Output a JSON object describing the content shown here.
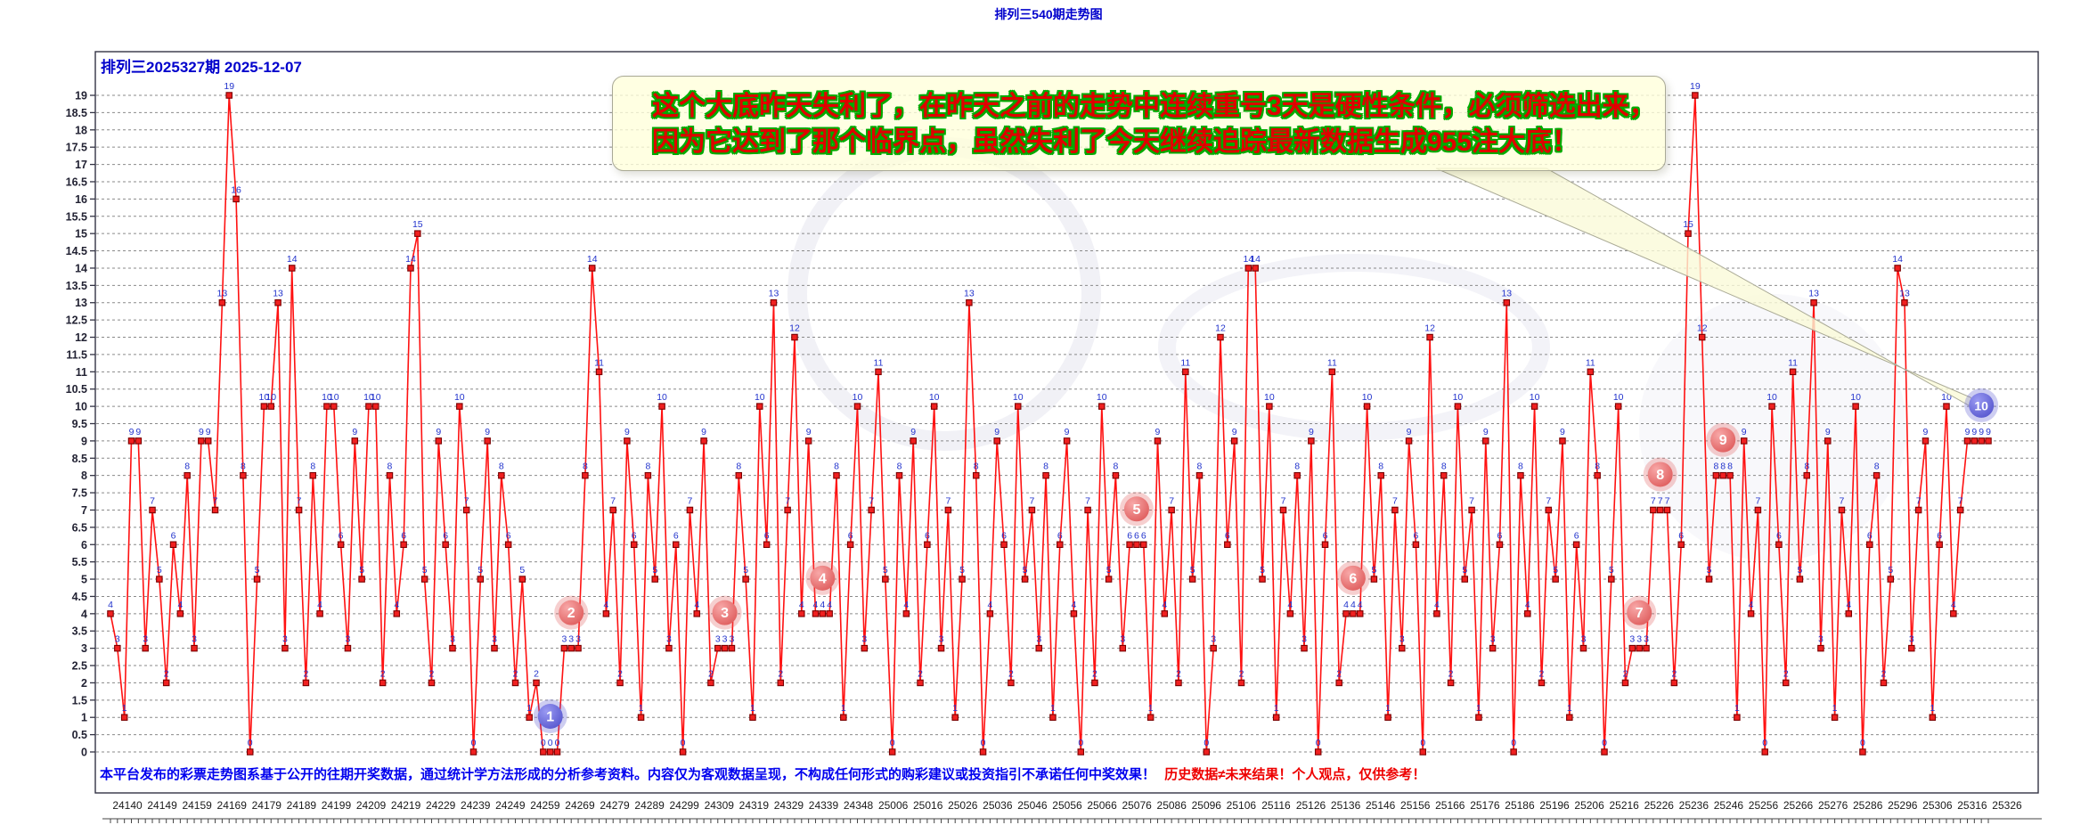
{
  "page": {
    "title": "排列三540期走势图"
  },
  "chart": {
    "header": "排列三2025327期 2025-12-07",
    "bubble": {
      "line1": "这个大底昨天失利了，在昨天之前的走势中连续重号3天是硬性条件，必须筛选出来，",
      "line2": "因为它达到了那个临界点，虽然失利了今天继续追踪最新数据生成955注大底！"
    },
    "disclaimer": {
      "blue": "本平台发布的彩票走势图系基于公开的往期开奖数据，通过统计学方法形成的分析参考资料。内容仅为客观数据呈现，不构成任何形式的购彩建议或投资指引不承诺任何中奖效果！",
      "red": "历史数据≠未来结果！个人观点，仅供参考！"
    }
  },
  "chart_data": {
    "type": "line",
    "title": "排列三540期走势图",
    "xlabel": "期号",
    "ylabel": "",
    "ylim": [
      0,
      19
    ],
    "y_tick_step": 0.5,
    "grid": "dashed",
    "x_tick_labels": [
      "24140",
      "24149",
      "24159",
      "24169",
      "24179",
      "24189",
      "24199",
      "24209",
      "24219",
      "24229",
      "24239",
      "24249",
      "24259",
      "24269",
      "24279",
      "24289",
      "24299",
      "24309",
      "24319",
      "24329",
      "24339",
      "24348",
      "25006",
      "25016",
      "25026",
      "25036",
      "25046",
      "25056",
      "25066",
      "25076",
      "25086",
      "25096",
      "25106",
      "25116",
      "25126",
      "25136",
      "25146",
      "25156",
      "25166",
      "25176",
      "25186",
      "25196",
      "25206",
      "25216",
      "25226",
      "25236",
      "25246",
      "25256",
      "25266",
      "25276",
      "25286",
      "25296",
      "25306",
      "25316",
      "25326"
    ],
    "values": [
      4,
      3,
      1,
      9,
      9,
      3,
      7,
      5,
      2,
      6,
      4,
      8,
      3,
      9,
      9,
      7,
      13,
      19,
      16,
      8,
      0,
      5,
      10,
      10,
      13,
      3,
      14,
      7,
      2,
      8,
      4,
      10,
      10,
      6,
      3,
      9,
      5,
      10,
      10,
      2,
      8,
      4,
      6,
      14,
      15,
      5,
      2,
      9,
      6,
      3,
      10,
      7,
      0,
      5,
      9,
      3,
      8,
      6,
      2,
      5,
      1,
      2,
      0,
      0,
      0,
      3,
      3,
      3,
      8,
      14,
      11,
      4,
      7,
      2,
      9,
      6,
      1,
      8,
      5,
      10,
      3,
      6,
      0,
      7,
      4,
      9,
      2,
      3,
      3,
      3,
      8,
      5,
      1,
      10,
      6,
      13,
      2,
      7,
      12,
      4,
      9,
      4,
      4,
      4,
      8,
      1,
      6,
      10,
      3,
      7,
      11,
      5,
      0,
      8,
      4,
      9,
      2,
      6,
      10,
      3,
      7,
      1,
      5,
      13,
      8,
      0,
      4,
      9,
      6,
      2,
      10,
      5,
      7,
      3,
      8,
      1,
      6,
      9,
      4,
      0,
      7,
      2,
      10,
      5,
      8,
      3,
      6,
      6,
      6,
      1,
      9,
      4,
      7,
      2,
      11,
      5,
      8,
      0,
      3,
      12,
      6,
      9,
      2,
      14,
      14,
      5,
      10,
      1,
      7,
      4,
      8,
      3,
      9,
      0,
      6,
      11,
      2,
      4,
      4,
      4,
      10,
      5,
      8,
      1,
      7,
      3,
      9,
      6,
      0,
      12,
      4,
      8,
      2,
      10,
      5,
      7,
      1,
      9,
      3,
      6,
      13,
      0,
      8,
      4,
      10,
      2,
      7,
      5,
      9,
      1,
      6,
      3,
      11,
      8,
      0,
      5,
      10,
      2,
      3,
      3,
      3,
      7,
      7,
      7,
      2,
      6,
      15,
      19,
      12,
      5,
      8,
      8,
      8,
      1,
      9,
      4,
      7,
      0,
      10,
      6,
      2,
      11,
      5,
      8,
      13,
      3,
      9,
      1,
      7,
      4,
      10,
      0,
      6,
      8,
      2,
      5,
      14,
      13,
      3,
      7,
      9,
      1,
      6,
      10,
      4,
      7,
      9,
      9,
      9,
      9
    ],
    "badges": [
      {
        "label": "1",
        "index": 63,
        "style": "blue"
      },
      {
        "label": "2",
        "index": 66,
        "style": "pink"
      },
      {
        "label": "3",
        "index": 88,
        "style": "pink"
      },
      {
        "label": "4",
        "index": 102,
        "style": "pink"
      },
      {
        "label": "5",
        "index": 147,
        "style": "pink"
      },
      {
        "label": "6",
        "index": 178,
        "style": "pink"
      },
      {
        "label": "7",
        "index": 219,
        "style": "pink"
      },
      {
        "label": "8",
        "index": 222,
        "style": "pink"
      },
      {
        "label": "9",
        "index": 231,
        "style": "pink"
      },
      {
        "label": "10",
        "index": 268,
        "style": "blue"
      }
    ],
    "legend_position": "none",
    "style": {
      "line_color": "#ff1111",
      "marker_fill": "#f02020",
      "marker_border": "#7a0000",
      "point_label_color": "#2233cc",
      "grid_color": "#8a8a8a",
      "axis_label_color": "#222233",
      "frame_color": "#333344",
      "badge_pink": "#e06060",
      "badge_blue": "#5a5ad0",
      "bubble_bg": "#ffffda",
      "title_color": "#0000cc"
    }
  }
}
